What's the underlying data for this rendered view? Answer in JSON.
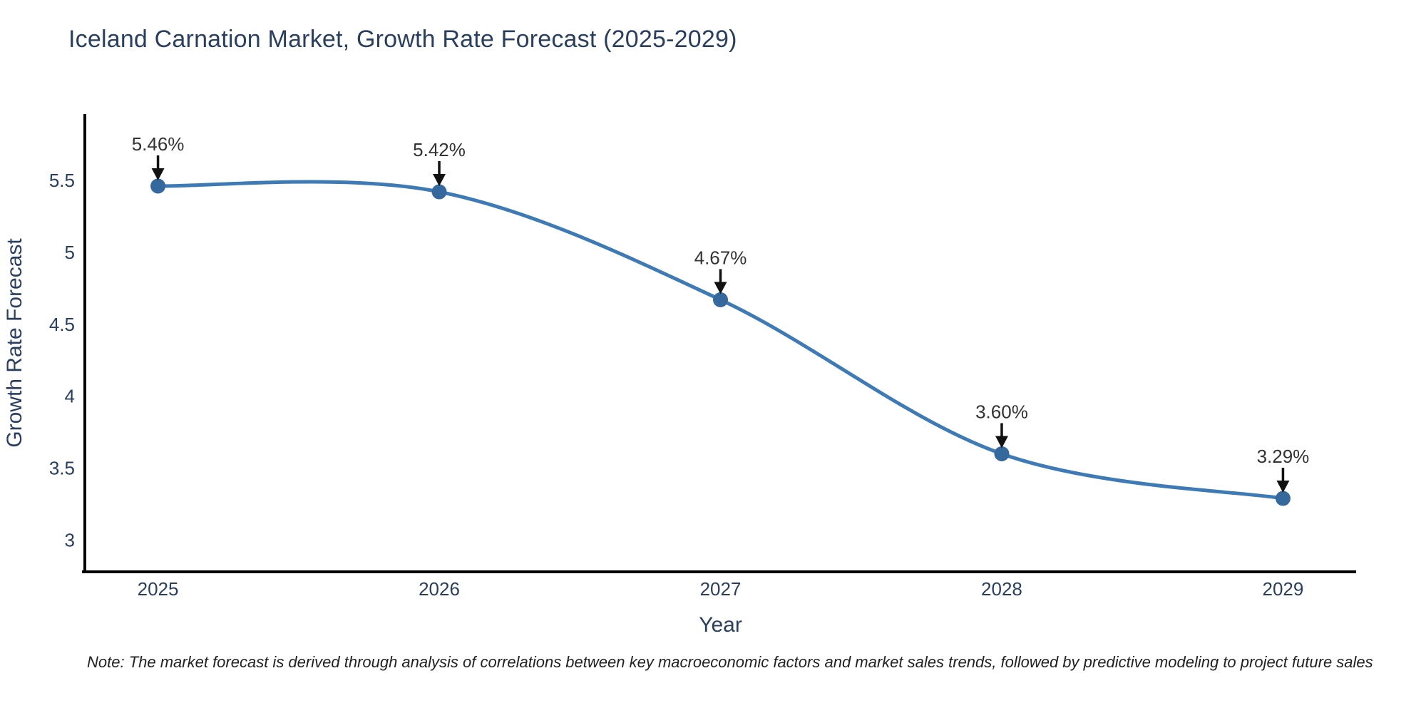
{
  "header": {
    "title": "Iceland Carnation Market, Growth Rate Forecast (2025-2029)"
  },
  "footnote": {
    "text": "Note: The market forecast is derived through analysis of correlations between key macroeconomic factors and market sales trends, followed by predictive modeling to project future sales"
  },
  "chart_data": {
    "type": "line",
    "title": "Iceland Carnation Market, Growth Rate Forecast (2025-2029)",
    "xlabel": "Year",
    "ylabel": "Growth Rate Forecast",
    "x": [
      2025,
      2026,
      2027,
      2028,
      2029
    ],
    "series": [
      {
        "name": "Growth Rate Forecast",
        "values": [
          5.46,
          5.42,
          4.67,
          3.6,
          3.29
        ]
      }
    ],
    "point_labels": [
      "5.46%",
      "5.42%",
      "4.67%",
      "3.60%",
      "3.29%"
    ],
    "x_tick_labels": [
      "2025",
      "2026",
      "2027",
      "2028",
      "2029"
    ],
    "y_tick_values": [
      3,
      3.5,
      4,
      4.5,
      5,
      5.5
    ],
    "y_tick_labels": [
      "3",
      "3.5",
      "4",
      "4.5",
      "5",
      "5.5"
    ],
    "xlim": [
      2024.74,
      2029.26
    ],
    "ylim": [
      2.78,
      5.96
    ],
    "grid": false,
    "legend_position": "none",
    "line_shape": "spline",
    "colors": {
      "line": "#3e7ab5",
      "marker": "#35689c",
      "arrow": "#111111",
      "axis": "#000000",
      "text": "#2a3f5f"
    }
  }
}
